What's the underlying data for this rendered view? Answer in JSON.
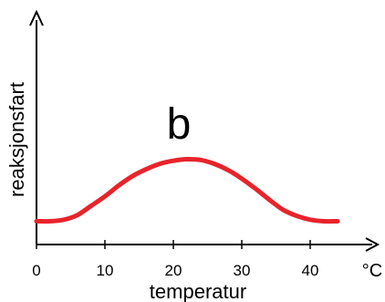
{
  "chart_data": {
    "type": "line",
    "title": "",
    "xlabel": "temperatur",
    "ylabel": "reaksjonsfart",
    "x_unit": "°C",
    "xlim": [
      0,
      46
    ],
    "x_ticks": [
      0,
      10,
      20,
      30,
      40
    ],
    "x_tick_labels": [
      "0",
      "10",
      "20",
      "30",
      "40"
    ],
    "y_ticks": [],
    "annotation": "b",
    "grid": false,
    "legend": "none",
    "series": [
      {
        "color": "#e8232b",
        "x": [
          0,
          2,
          4,
          6,
          8,
          10,
          12,
          14,
          16,
          18,
          20,
          22,
          24,
          26,
          28,
          30,
          32,
          34,
          36,
          38,
          40,
          42,
          44
        ],
        "y": [
          0.3,
          0.3,
          0.32,
          0.38,
          0.5,
          0.62,
          0.76,
          0.88,
          0.97,
          1.04,
          1.08,
          1.1,
          1.09,
          1.04,
          0.96,
          0.85,
          0.72,
          0.58,
          0.45,
          0.37,
          0.32,
          0.3,
          0.3
        ]
      }
    ]
  }
}
